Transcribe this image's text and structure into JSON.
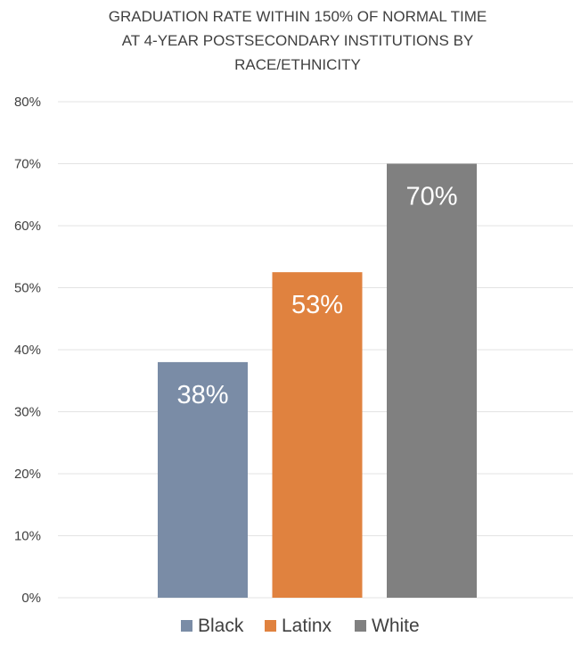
{
  "chart_data": {
    "type": "bar",
    "title_lines": [
      "GRADUATION RATE WITHIN 150% OF NORMAL TIME",
      "AT 4-YEAR POSTSECONDARY INSTITUTIONS BY",
      "RACE/ETHNICITY"
    ],
    "categories": [
      "Black",
      "Latinx",
      "White"
    ],
    "values": [
      38,
      52.5,
      70
    ],
    "data_labels": [
      "38%",
      "53%",
      "70%"
    ],
    "colors": [
      "#7a8ca6",
      "#e0823f",
      "#808080"
    ],
    "ylim": [
      0,
      80
    ],
    "y_ticks": [
      0,
      10,
      20,
      30,
      40,
      50,
      60,
      70,
      80
    ],
    "y_tick_labels": [
      "0%",
      "10%",
      "20%",
      "30%",
      "40%",
      "50%",
      "60%",
      "70%",
      "80%"
    ],
    "grid": true,
    "legend_position": "bottom",
    "legend": [
      "Black",
      "Latinx",
      "White"
    ]
  }
}
